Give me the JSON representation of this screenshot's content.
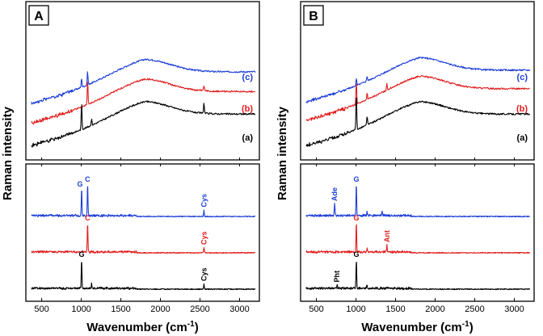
{
  "chart_data": {
    "type": "line",
    "y_axis_label": "Raman intensity",
    "x_axis_label_main": "Wavenumber (cm",
    "x_axis_label_sup": "-1",
    "x_axis_label_close": ")",
    "xlim": [
      300,
      3250
    ],
    "xticks": [
      500,
      1000,
      1500,
      2000,
      2500,
      3000
    ],
    "xtick_labels": [
      "500",
      "1000",
      "1500",
      "2000",
      "2500",
      "3000"
    ],
    "colors": {
      "a": "#000000",
      "b": "#e21d1d",
      "c": "#1f3fd8"
    },
    "panels": [
      {
        "tag": "A",
        "top": {
          "series": [
            {
              "key": "c",
              "label": "(c)",
              "color": "#1f3fd8",
              "offset": 0.75,
              "sharp_peaks": [
                [
                  1004,
                  0.07
                ],
                [
                  1080,
                  0.1
                ]
              ]
            },
            {
              "key": "b",
              "label": "(b)",
              "color": "#e21d1d",
              "offset": 0.4,
              "sharp_peaks": [
                [
                  1080,
                  0.18
                ],
                [
                  2550,
                  0.04
                ]
              ]
            },
            {
              "key": "a",
              "label": "(a)",
              "color": "#000000",
              "offset": 0.0,
              "sharp_peaks": [
                [
                  1004,
                  0.2
                ],
                [
                  1130,
                  0.05
                ],
                [
                  2550,
                  0.08
                ]
              ]
            }
          ]
        },
        "bottom": {
          "series": [
            {
              "key": "c",
              "color": "#1f3fd8",
              "offset": 0.62,
              "peaks": [
                [
                  1004,
                  0.22
                ],
                [
                  1080,
                  0.26
                ],
                [
                  2550,
                  0.05
                ]
              ],
              "labels": [
                {
                  "text": "G",
                  "x": 1004
                },
                {
                  "text": "C",
                  "x": 1080
                },
                {
                  "text": "Cys",
                  "x": 2550
                }
              ]
            },
            {
              "key": "b",
              "color": "#e21d1d",
              "offset": 0.32,
              "peaks": [
                [
                  1080,
                  0.24
                ],
                [
                  2550,
                  0.04
                ]
              ],
              "labels": [
                {
                  "text": "C",
                  "x": 1080
                },
                {
                  "text": "Cys",
                  "x": 2550
                }
              ]
            },
            {
              "key": "a",
              "color": "#000000",
              "offset": 0.02,
              "peaks": [
                [
                  1004,
                  0.24
                ],
                [
                  1130,
                  0.04
                ],
                [
                  2550,
                  0.04
                ]
              ],
              "labels": [
                {
                  "text": "G",
                  "x": 1004
                },
                {
                  "text": "Cys",
                  "x": 2550
                }
              ]
            }
          ]
        }
      },
      {
        "tag": "B",
        "top": {
          "series": [
            {
              "key": "c",
              "label": "(c)",
              "color": "#1f3fd8",
              "offset": 0.78,
              "sharp_peaks": [
                [
                  1004,
                  0.05
                ],
                [
                  1140,
                  0.04
                ]
              ]
            },
            {
              "key": "b",
              "label": "(b)",
              "color": "#e21d1d",
              "offset": 0.45,
              "sharp_peaks": [
                [
                  1004,
                  0.17
                ],
                [
                  1140,
                  0.05
                ],
                [
                  1390,
                  0.05
                ]
              ]
            },
            {
              "key": "a",
              "label": "(a)",
              "color": "#000000",
              "offset": 0.0,
              "sharp_peaks": [
                [
                  1004,
                  0.26
                ],
                [
                  1140,
                  0.07
                ]
              ]
            }
          ]
        },
        "bottom": {
          "series": [
            {
              "key": "c",
              "color": "#1f3fd8",
              "offset": 0.62,
              "peaks": [
                [
                  730,
                  0.1
                ],
                [
                  1004,
                  0.26
                ],
                [
                  1140,
                  0.04
                ],
                [
                  1330,
                  0.04
                ]
              ],
              "labels": [
                {
                  "text": "Ade",
                  "x": 730
                },
                {
                  "text": "G",
                  "x": 1004
                }
              ]
            },
            {
              "key": "b",
              "color": "#e21d1d",
              "offset": 0.32,
              "peaks": [
                [
                  1004,
                  0.24
                ],
                [
                  1140,
                  0.03
                ],
                [
                  1390,
                  0.06
                ]
              ],
              "labels": [
                {
                  "text": "G",
                  "x": 1004
                },
                {
                  "text": "Ant",
                  "x": 1390
                }
              ]
            },
            {
              "key": "a",
              "color": "#000000",
              "offset": 0.02,
              "peaks": [
                [
                  760,
                  0.03
                ],
                [
                  1004,
                  0.24
                ],
                [
                  1140,
                  0.03
                ]
              ],
              "labels": [
                {
                  "text": "Pht",
                  "x": 760
                },
                {
                  "text": "G",
                  "x": 1004
                }
              ]
            }
          ]
        }
      }
    ]
  }
}
